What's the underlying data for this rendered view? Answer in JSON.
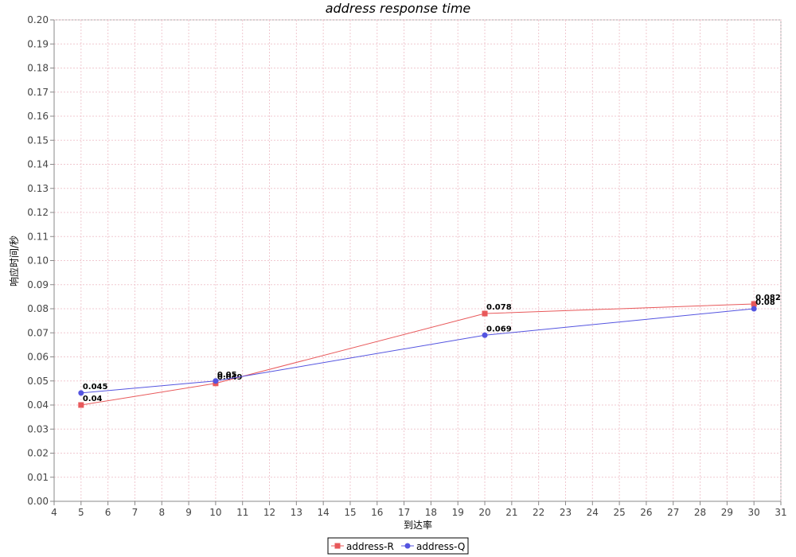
{
  "chart_data": {
    "type": "line",
    "title": "address response time",
    "xlabel": "到达率",
    "ylabel": "响应时间/秒",
    "xlim": [
      4,
      31
    ],
    "ylim": [
      0,
      0.2
    ],
    "xticks": [
      "4",
      "5",
      "6",
      "7",
      "8",
      "9",
      "10",
      "11",
      "12",
      "13",
      "14",
      "15",
      "16",
      "17",
      "18",
      "19",
      "20",
      "21",
      "22",
      "23",
      "24",
      "25",
      "26",
      "27",
      "28",
      "29",
      "30",
      "31"
    ],
    "yticks": [
      "0.00",
      "0.01",
      "0.02",
      "0.03",
      "0.04",
      "0.05",
      "0.06",
      "0.07",
      "0.08",
      "0.09",
      "0.10",
      "0.11",
      "0.12",
      "0.13",
      "0.14",
      "0.15",
      "0.16",
      "0.17",
      "0.18",
      "0.19",
      "0.20"
    ],
    "grid": true,
    "legend_position": "bottom",
    "series": [
      {
        "name": "address-R",
        "color": "#e8585a",
        "marker": "square",
        "x": [
          5,
          10,
          20,
          30
        ],
        "y": [
          0.04,
          0.049,
          0.078,
          0.082
        ],
        "labels": [
          "0.04",
          "0.049",
          "0.078",
          "0.082"
        ]
      },
      {
        "name": "address-Q",
        "color": "#5454e0",
        "marker": "circle",
        "x": [
          5,
          10,
          20,
          30
        ],
        "y": [
          0.045,
          0.05,
          0.069,
          0.08
        ],
        "labels": [
          "0.045",
          "0.05",
          "0.069",
          "0.08"
        ]
      }
    ]
  }
}
